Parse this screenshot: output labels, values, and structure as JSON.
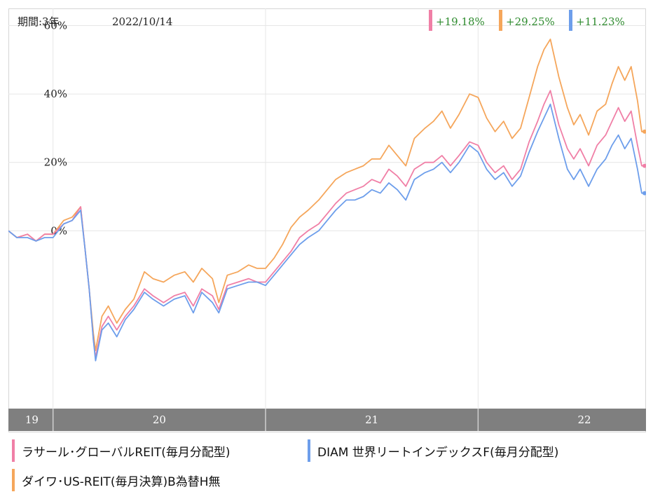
{
  "header": {
    "period_label": "期間:3年",
    "date": "2022/10/14"
  },
  "returns": [
    {
      "series": "lasalle",
      "value": "+19.18%",
      "color": "#f07fa6"
    },
    {
      "series": "daiwa",
      "value": "+29.25%",
      "color": "#f5a65b"
    },
    {
      "series": "diam",
      "value": "+11.23%",
      "color": "#6d9eeb"
    }
  ],
  "colors": {
    "lasalle": "#f07fa6",
    "daiwa": "#f5a65b",
    "diam": "#6d9eeb",
    "return_text": "#2e8b2e",
    "axis_band": "#7f7f7f",
    "grid": "#e6e6e6"
  },
  "legend": [
    {
      "key": "lasalle",
      "label": "ラサール･グローバルREIT(毎月分配型)"
    },
    {
      "key": "diam",
      "label": "DIAM 世界リートインデックスF(毎月分配型)"
    },
    {
      "key": "daiwa",
      "label": "ダイワ･US-REIT(毎月決算)B為替H無"
    }
  ],
  "chart_data": {
    "type": "line",
    "ylim": [
      -52,
      64
    ],
    "yticks": [
      0,
      20,
      40,
      60
    ],
    "ytick_labels": [
      "0%",
      "20%",
      "40%",
      "60%"
    ],
    "xlim": [
      2019.79,
      2022.79
    ],
    "xticks": [
      {
        "label": "19",
        "value": 2019.9
      },
      {
        "label": "20",
        "value": 2020.5
      },
      {
        "label": "21",
        "value": 2021.5
      },
      {
        "label": "22",
        "value": 2022.5
      }
    ],
    "year_boundaries": [
      2020.0,
      2021.0,
      2022.0
    ],
    "series": [
      {
        "key": "daiwa",
        "points": [
          [
            2019.79,
            0
          ],
          [
            2019.83,
            -2
          ],
          [
            2019.88,
            -1
          ],
          [
            2019.92,
            -3
          ],
          [
            2019.96,
            -1
          ],
          [
            2020.0,
            -1
          ],
          [
            2020.05,
            3
          ],
          [
            2020.09,
            4
          ],
          [
            2020.13,
            7
          ],
          [
            2020.15,
            -5
          ],
          [
            2020.17,
            -17
          ],
          [
            2020.19,
            -30
          ],
          [
            2020.2,
            -35
          ],
          [
            2020.23,
            -25
          ],
          [
            2020.26,
            -22
          ],
          [
            2020.3,
            -27
          ],
          [
            2020.34,
            -23
          ],
          [
            2020.38,
            -20
          ],
          [
            2020.43,
            -12
          ],
          [
            2020.47,
            -14
          ],
          [
            2020.52,
            -15
          ],
          [
            2020.57,
            -13
          ],
          [
            2020.62,
            -12
          ],
          [
            2020.66,
            -15
          ],
          [
            2020.7,
            -11
          ],
          [
            2020.75,
            -14
          ],
          [
            2020.78,
            -21
          ],
          [
            2020.82,
            -13
          ],
          [
            2020.87,
            -12
          ],
          [
            2020.92,
            -10
          ],
          [
            2020.96,
            -11
          ],
          [
            2021.0,
            -11
          ],
          [
            2021.04,
            -8
          ],
          [
            2021.08,
            -4
          ],
          [
            2021.12,
            1
          ],
          [
            2021.16,
            4
          ],
          [
            2021.2,
            6
          ],
          [
            2021.25,
            9
          ],
          [
            2021.29,
            12
          ],
          [
            2021.33,
            15
          ],
          [
            2021.38,
            17
          ],
          [
            2021.42,
            18
          ],
          [
            2021.46,
            19
          ],
          [
            2021.5,
            21
          ],
          [
            2021.54,
            21
          ],
          [
            2021.58,
            25
          ],
          [
            2021.62,
            22
          ],
          [
            2021.66,
            19
          ],
          [
            2021.7,
            27
          ],
          [
            2021.75,
            30
          ],
          [
            2021.79,
            32
          ],
          [
            2021.83,
            35
          ],
          [
            2021.87,
            30
          ],
          [
            2021.91,
            34
          ],
          [
            2021.96,
            40
          ],
          [
            2022.0,
            39
          ],
          [
            2022.04,
            33
          ],
          [
            2022.08,
            29
          ],
          [
            2022.12,
            32
          ],
          [
            2022.16,
            27
          ],
          [
            2022.2,
            30
          ],
          [
            2022.24,
            39
          ],
          [
            2022.28,
            48
          ],
          [
            2022.31,
            53
          ],
          [
            2022.34,
            56
          ],
          [
            2022.38,
            45
          ],
          [
            2022.42,
            36
          ],
          [
            2022.45,
            31
          ],
          [
            2022.48,
            34
          ],
          [
            2022.52,
            28
          ],
          [
            2022.56,
            35
          ],
          [
            2022.6,
            37
          ],
          [
            2022.63,
            43
          ],
          [
            2022.66,
            48
          ],
          [
            2022.69,
            44
          ],
          [
            2022.72,
            48
          ],
          [
            2022.75,
            38
          ],
          [
            2022.77,
            29
          ],
          [
            2022.79,
            29
          ]
        ]
      },
      {
        "key": "lasalle",
        "points": [
          [
            2019.79,
            0
          ],
          [
            2019.83,
            -2
          ],
          [
            2019.88,
            -1
          ],
          [
            2019.92,
            -3
          ],
          [
            2019.96,
            -1
          ],
          [
            2020.0,
            -1
          ],
          [
            2020.05,
            2
          ],
          [
            2020.09,
            3
          ],
          [
            2020.13,
            7
          ],
          [
            2020.15,
            -5
          ],
          [
            2020.17,
            -17
          ],
          [
            2020.19,
            -32
          ],
          [
            2020.2,
            -37
          ],
          [
            2020.23,
            -28
          ],
          [
            2020.26,
            -25
          ],
          [
            2020.3,
            -29
          ],
          [
            2020.34,
            -25
          ],
          [
            2020.38,
            -22
          ],
          [
            2020.43,
            -17
          ],
          [
            2020.47,
            -19
          ],
          [
            2020.52,
            -21
          ],
          [
            2020.57,
            -19
          ],
          [
            2020.62,
            -18
          ],
          [
            2020.66,
            -22
          ],
          [
            2020.7,
            -17
          ],
          [
            2020.75,
            -19
          ],
          [
            2020.78,
            -23
          ],
          [
            2020.82,
            -16
          ],
          [
            2020.87,
            -15
          ],
          [
            2020.92,
            -14
          ],
          [
            2020.96,
            -15
          ],
          [
            2021.0,
            -15
          ],
          [
            2021.04,
            -12
          ],
          [
            2021.08,
            -9
          ],
          [
            2021.12,
            -6
          ],
          [
            2021.16,
            -2
          ],
          [
            2021.2,
            0
          ],
          [
            2021.25,
            2
          ],
          [
            2021.29,
            5
          ],
          [
            2021.33,
            8
          ],
          [
            2021.38,
            11
          ],
          [
            2021.42,
            12
          ],
          [
            2021.46,
            13
          ],
          [
            2021.5,
            15
          ],
          [
            2021.54,
            14
          ],
          [
            2021.58,
            18
          ],
          [
            2021.62,
            16
          ],
          [
            2021.66,
            13
          ],
          [
            2021.7,
            18
          ],
          [
            2021.75,
            20
          ],
          [
            2021.79,
            20
          ],
          [
            2021.83,
            22
          ],
          [
            2021.87,
            19
          ],
          [
            2021.91,
            22
          ],
          [
            2021.96,
            26
          ],
          [
            2022.0,
            25
          ],
          [
            2022.04,
            20
          ],
          [
            2022.08,
            17
          ],
          [
            2022.12,
            19
          ],
          [
            2022.16,
            15
          ],
          [
            2022.2,
            18
          ],
          [
            2022.24,
            26
          ],
          [
            2022.28,
            32
          ],
          [
            2022.31,
            37
          ],
          [
            2022.34,
            41
          ],
          [
            2022.38,
            31
          ],
          [
            2022.42,
            24
          ],
          [
            2022.45,
            21
          ],
          [
            2022.48,
            24
          ],
          [
            2022.52,
            19
          ],
          [
            2022.56,
            25
          ],
          [
            2022.6,
            28
          ],
          [
            2022.63,
            32
          ],
          [
            2022.66,
            36
          ],
          [
            2022.69,
            32
          ],
          [
            2022.72,
            35
          ],
          [
            2022.75,
            25
          ],
          [
            2022.77,
            19
          ],
          [
            2022.79,
            19
          ]
        ]
      },
      {
        "key": "diam",
        "points": [
          [
            2019.79,
            0
          ],
          [
            2019.83,
            -2
          ],
          [
            2019.88,
            -2
          ],
          [
            2019.92,
            -3
          ],
          [
            2019.96,
            -2
          ],
          [
            2020.0,
            -2
          ],
          [
            2020.05,
            2
          ],
          [
            2020.09,
            3
          ],
          [
            2020.13,
            6
          ],
          [
            2020.15,
            -5
          ],
          [
            2020.17,
            -17
          ],
          [
            2020.19,
            -32
          ],
          [
            2020.2,
            -38
          ],
          [
            2020.23,
            -29
          ],
          [
            2020.26,
            -27
          ],
          [
            2020.3,
            -31
          ],
          [
            2020.34,
            -26
          ],
          [
            2020.38,
            -23
          ],
          [
            2020.43,
            -18
          ],
          [
            2020.47,
            -20
          ],
          [
            2020.52,
            -22
          ],
          [
            2020.57,
            -20
          ],
          [
            2020.62,
            -19
          ],
          [
            2020.66,
            -24
          ],
          [
            2020.7,
            -18
          ],
          [
            2020.75,
            -21
          ],
          [
            2020.78,
            -24
          ],
          [
            2020.82,
            -17
          ],
          [
            2020.87,
            -16
          ],
          [
            2020.92,
            -15
          ],
          [
            2020.96,
            -15
          ],
          [
            2021.0,
            -16
          ],
          [
            2021.04,
            -13
          ],
          [
            2021.08,
            -10
          ],
          [
            2021.12,
            -7
          ],
          [
            2021.16,
            -4
          ],
          [
            2021.2,
            -2
          ],
          [
            2021.25,
            0
          ],
          [
            2021.29,
            3
          ],
          [
            2021.33,
            6
          ],
          [
            2021.38,
            9
          ],
          [
            2021.42,
            9
          ],
          [
            2021.46,
            10
          ],
          [
            2021.5,
            12
          ],
          [
            2021.54,
            11
          ],
          [
            2021.58,
            14
          ],
          [
            2021.62,
            12
          ],
          [
            2021.66,
            9
          ],
          [
            2021.7,
            15
          ],
          [
            2021.75,
            17
          ],
          [
            2021.79,
            18
          ],
          [
            2021.83,
            20
          ],
          [
            2021.87,
            17
          ],
          [
            2021.91,
            20
          ],
          [
            2021.96,
            25
          ],
          [
            2022.0,
            23
          ],
          [
            2022.04,
            18
          ],
          [
            2022.08,
            15
          ],
          [
            2022.12,
            17
          ],
          [
            2022.16,
            13
          ],
          [
            2022.2,
            16
          ],
          [
            2022.24,
            23
          ],
          [
            2022.28,
            29
          ],
          [
            2022.31,
            33
          ],
          [
            2022.34,
            37
          ],
          [
            2022.38,
            27
          ],
          [
            2022.42,
            18
          ],
          [
            2022.45,
            15
          ],
          [
            2022.48,
            18
          ],
          [
            2022.52,
            13
          ],
          [
            2022.56,
            18
          ],
          [
            2022.6,
            21
          ],
          [
            2022.63,
            25
          ],
          [
            2022.66,
            28
          ],
          [
            2022.69,
            24
          ],
          [
            2022.72,
            27
          ],
          [
            2022.75,
            18
          ],
          [
            2022.77,
            11
          ],
          [
            2022.79,
            11
          ]
        ]
      }
    ]
  }
}
